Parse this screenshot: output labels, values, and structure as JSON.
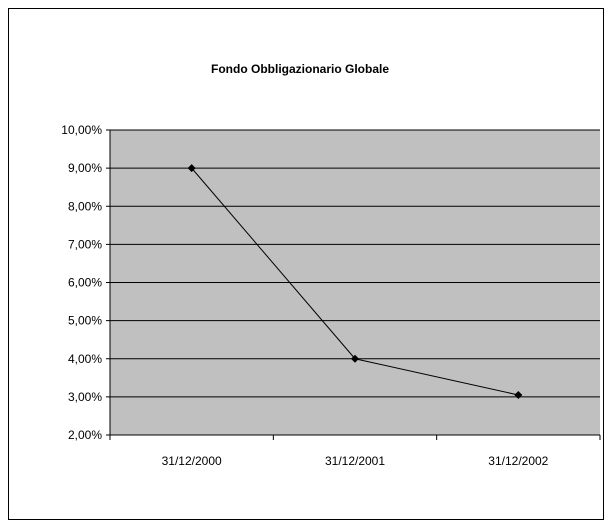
{
  "chart_data": {
    "type": "line",
    "title": "Fondo Obbligazionario Globale",
    "xlabel": "",
    "ylabel": "",
    "categories": [
      "31/12/2000",
      "31/12/2001",
      "31/12/2002"
    ],
    "series": [
      {
        "values": [
          9.0,
          4.0,
          3.05
        ]
      }
    ],
    "ylim": [
      2,
      10
    ],
    "yticks": [
      2,
      3,
      4,
      5,
      6,
      7,
      8,
      9,
      10
    ],
    "ytick_labels": [
      "2,00%",
      "3,00%",
      "4,00%",
      "5,00%",
      "6,00%",
      "7,00%",
      "8,00%",
      "9,00%",
      "10,00%"
    ],
    "grid": true,
    "legend": "none",
    "colors": {
      "plot_background": "#c0c0c0",
      "line": "#000000",
      "marker": "#000000",
      "gridline": "#000000"
    }
  }
}
